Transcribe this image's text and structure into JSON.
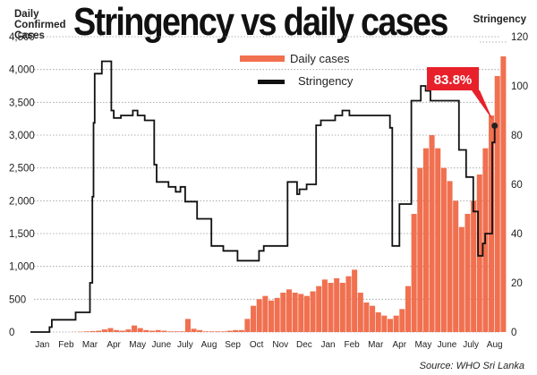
{
  "header": {
    "left_axis_label": "Daily\nConfirmed\nCases",
    "title": "Stringency vs daily cases",
    "right_axis_label": "Stringency"
  },
  "footer": {
    "source": "Source: WHO Sri Lanka"
  },
  "colors": {
    "cases": "#f07050",
    "stringency": "#111111",
    "callout": "#e8202a",
    "grid": "#9a9a9a"
  },
  "chart_data": {
    "type": "bar",
    "title": "Stringency vs daily cases",
    "xlabel": "",
    "ylabel": "Daily Confirmed Cases",
    "ylabel_right": "Stringency",
    "ylim": [
      0,
      4500
    ],
    "ylim_right": [
      0,
      120
    ],
    "y_ticks": [
      "0",
      "500",
      "1,000",
      "1,500",
      "2,000",
      "2,500",
      "3,000",
      "3,500",
      "4,000",
      "4,500"
    ],
    "y_ticks_right": [
      "0",
      "20",
      "40",
      "60",
      "80",
      "100",
      "120"
    ],
    "categories": [
      "Jan",
      "Feb",
      "Mar",
      "Apr",
      "May",
      "June",
      "July",
      "Aug",
      "Sep",
      "Oct",
      "Nov",
      "Dec",
      "Jan",
      "Feb",
      "Mar",
      "Apr",
      "May",
      "June",
      "July",
      "Aug"
    ],
    "grid": "horizontal dotted",
    "legend": {
      "position": "top-center",
      "entries": [
        "Daily cases",
        "Stringency"
      ]
    },
    "annotation": {
      "text": "83.8%",
      "value": 83.8
    },
    "series": [
      {
        "name": "Daily cases",
        "kind": "bar",
        "axis": "left",
        "months": [
          [
            0,
            0,
            0,
            0
          ],
          [
            0,
            0,
            0,
            2
          ],
          [
            5,
            10,
            15,
            20
          ],
          [
            40,
            60,
            30,
            20
          ],
          [
            40,
            100,
            60,
            30
          ],
          [
            20,
            30,
            20,
            10
          ],
          [
            10,
            10,
            200,
            50
          ],
          [
            30,
            10,
            10,
            10
          ],
          [
            10,
            20,
            30,
            30
          ],
          [
            200,
            400,
            500,
            550
          ],
          [
            480,
            520,
            600,
            650
          ],
          [
            600,
            580,
            550,
            620
          ],
          [
            700,
            800,
            750,
            820
          ],
          [
            750,
            850,
            950,
            600
          ],
          [
            450,
            400,
            300,
            250
          ],
          [
            200,
            250,
            350,
            700
          ],
          [
            1800,
            2500,
            2800,
            3000
          ],
          [
            2800,
            2500,
            2300,
            2000
          ],
          [
            1600,
            1800,
            2000,
            2400
          ],
          [
            2800,
            3300,
            3900,
            4200
          ]
        ]
      },
      {
        "name": "Stringency",
        "kind": "step",
        "axis": "right",
        "points": [
          [
            0.0,
            0
          ],
          [
            0.8,
            0
          ],
          [
            0.8,
            2
          ],
          [
            0.9,
            2
          ],
          [
            0.9,
            5
          ],
          [
            1.9,
            5
          ],
          [
            1.9,
            8
          ],
          [
            2.5,
            8
          ],
          [
            2.5,
            20
          ],
          [
            2.6,
            20
          ],
          [
            2.6,
            55
          ],
          [
            2.65,
            55
          ],
          [
            2.65,
            85
          ],
          [
            2.7,
            85
          ],
          [
            2.7,
            105
          ],
          [
            3.0,
            105
          ],
          [
            3.0,
            110
          ],
          [
            3.4,
            110
          ],
          [
            3.4,
            90
          ],
          [
            3.5,
            90
          ],
          [
            3.5,
            87
          ],
          [
            3.8,
            87
          ],
          [
            3.8,
            88
          ],
          [
            4.3,
            88
          ],
          [
            4.3,
            90
          ],
          [
            4.5,
            90
          ],
          [
            4.5,
            88
          ],
          [
            4.8,
            88
          ],
          [
            4.8,
            86
          ],
          [
            5.2,
            86
          ],
          [
            5.2,
            68
          ],
          [
            5.3,
            68
          ],
          [
            5.3,
            61
          ],
          [
            5.8,
            61
          ],
          [
            5.8,
            59
          ],
          [
            6.1,
            59
          ],
          [
            6.1,
            57
          ],
          [
            6.3,
            57
          ],
          [
            6.3,
            59
          ],
          [
            6.5,
            59
          ],
          [
            6.5,
            53
          ],
          [
            7.0,
            53
          ],
          [
            7.0,
            46
          ],
          [
            7.6,
            46
          ],
          [
            7.6,
            35
          ],
          [
            8.1,
            35
          ],
          [
            8.1,
            33
          ],
          [
            8.7,
            33
          ],
          [
            8.7,
            29
          ],
          [
            9.6,
            29
          ],
          [
            9.6,
            33
          ],
          [
            9.8,
            33
          ],
          [
            9.8,
            35
          ],
          [
            10.8,
            35
          ],
          [
            10.8,
            61
          ],
          [
            11.2,
            61
          ],
          [
            11.2,
            56
          ],
          [
            11.3,
            56
          ],
          [
            11.3,
            58
          ],
          [
            11.6,
            58
          ],
          [
            11.6,
            60
          ],
          [
            12.0,
            60
          ],
          [
            12.0,
            84
          ],
          [
            12.2,
            84
          ],
          [
            12.2,
            86
          ],
          [
            12.8,
            86
          ],
          [
            12.8,
            88
          ],
          [
            13.1,
            88
          ],
          [
            13.1,
            90
          ],
          [
            13.4,
            90
          ],
          [
            13.4,
            88
          ],
          [
            15.1,
            88
          ],
          [
            15.1,
            83
          ],
          [
            15.2,
            83
          ],
          [
            15.2,
            35
          ],
          [
            15.5,
            35
          ],
          [
            15.5,
            52
          ],
          [
            16.0,
            52
          ],
          [
            16.0,
            94
          ],
          [
            16.4,
            94
          ],
          [
            16.4,
            100
          ],
          [
            16.6,
            100
          ],
          [
            16.6,
            98
          ],
          [
            16.8,
            98
          ],
          [
            16.8,
            94
          ],
          [
            18.0,
            94
          ],
          [
            18.0,
            74
          ],
          [
            18.3,
            74
          ],
          [
            18.3,
            63
          ],
          [
            18.6,
            63
          ],
          [
            18.6,
            49
          ],
          [
            18.8,
            49
          ],
          [
            18.8,
            31
          ],
          [
            19.0,
            31
          ],
          [
            19.0,
            36
          ],
          [
            19.1,
            36
          ],
          [
            19.1,
            40
          ],
          [
            19.4,
            40
          ],
          [
            19.4,
            77
          ],
          [
            19.5,
            77
          ],
          [
            19.5,
            83.8
          ]
        ]
      }
    ]
  }
}
